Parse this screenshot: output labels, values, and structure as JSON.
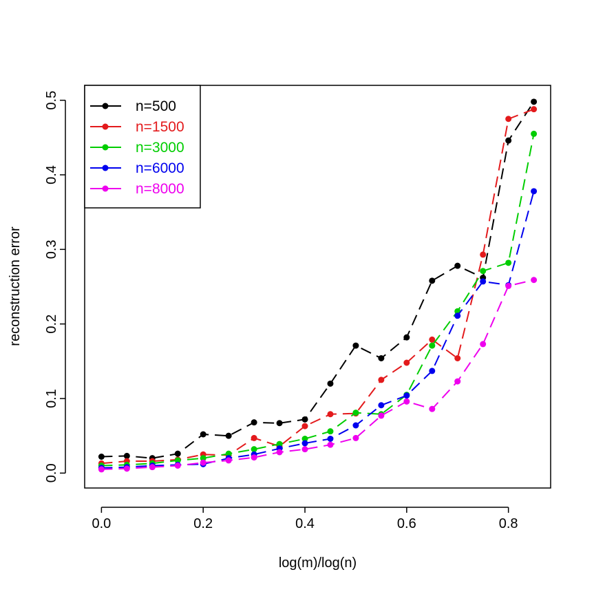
{
  "chart_data": {
    "type": "line",
    "title": "",
    "xlabel": "log(m)/log(n)",
    "ylabel": "reconstruction error",
    "xlim": [
      -0.033,
      0.883
    ],
    "ylim": [
      -0.02,
      0.52
    ],
    "xticks": [
      0.0,
      0.2,
      0.4,
      0.6,
      0.8
    ],
    "xtick_labels": [
      "0.0",
      "0.2",
      "0.4",
      "0.6",
      "0.8"
    ],
    "yticks": [
      0.0,
      0.1,
      0.2,
      0.3,
      0.4,
      0.5
    ],
    "ytick_labels": [
      "0.0",
      "0.1",
      "0.2",
      "0.3",
      "0.4",
      "0.5"
    ],
    "grid": false,
    "legend_position": "top-left",
    "x": [
      0.0,
      0.05,
      0.1,
      0.15,
      0.2,
      0.25,
      0.3,
      0.35,
      0.4,
      0.45,
      0.5,
      0.55,
      0.6,
      0.65,
      0.7,
      0.75,
      0.8,
      0.85
    ],
    "series": [
      {
        "name": "n=500",
        "color": "#000000",
        "values": [
          0.022,
          0.023,
          0.02,
          0.026,
          0.052,
          0.05,
          0.068,
          0.067,
          0.072,
          0.12,
          0.171,
          0.154,
          0.182,
          0.258,
          0.278,
          0.262,
          0.446,
          0.498
        ]
      },
      {
        "name": "n=1500",
        "color": "#e31a1c",
        "values": [
          0.013,
          0.016,
          0.016,
          0.018,
          0.025,
          0.024,
          0.047,
          0.036,
          0.063,
          0.079,
          0.08,
          0.125,
          0.148,
          0.179,
          0.154,
          0.293,
          0.475,
          0.488
        ]
      },
      {
        "name": "n=3000",
        "color": "#00cd00",
        "values": [
          0.01,
          0.011,
          0.013,
          0.017,
          0.02,
          0.026,
          0.032,
          0.039,
          0.046,
          0.056,
          0.081,
          0.079,
          0.105,
          0.171,
          0.217,
          0.271,
          0.282,
          0.455
        ]
      },
      {
        "name": "n=6000",
        "color": "#0000ee",
        "values": [
          0.007,
          0.008,
          0.01,
          0.011,
          0.012,
          0.02,
          0.025,
          0.033,
          0.04,
          0.046,
          0.064,
          0.091,
          0.104,
          0.137,
          0.211,
          0.257,
          0.252,
          0.378
        ]
      },
      {
        "name": "n=8000",
        "color": "#ee00ee",
        "values": [
          0.005,
          0.006,
          0.008,
          0.01,
          0.014,
          0.017,
          0.021,
          0.028,
          0.032,
          0.038,
          0.047,
          0.077,
          0.096,
          0.086,
          0.123,
          0.173,
          0.251,
          0.259
        ]
      }
    ]
  }
}
